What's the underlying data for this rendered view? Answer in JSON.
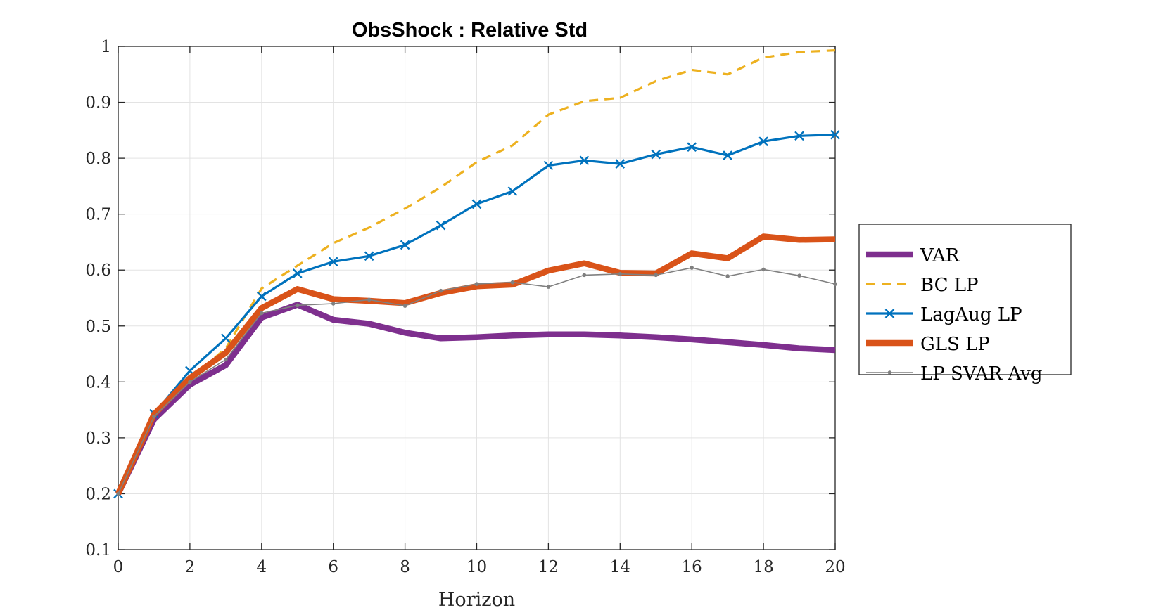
{
  "chart_data": {
    "type": "line",
    "title": "ObsShock : Relative Std",
    "xlabel": "Horizon",
    "ylabel": "",
    "xlim": [
      0,
      20
    ],
    "ylim": [
      0.1,
      1
    ],
    "xticks": [
      "0",
      "2",
      "4",
      "6",
      "8",
      "10",
      "12",
      "14",
      "16",
      "18",
      "20"
    ],
    "yticks": [
      "0.1",
      "0.2",
      "0.3",
      "0.4",
      "0.5",
      "0.6",
      "0.7",
      "0.8",
      "0.9",
      "1"
    ],
    "grid": true,
    "legend_position": "outside-right",
    "x": [
      0,
      1,
      2,
      3,
      4,
      5,
      6,
      7,
      8,
      9,
      10,
      11,
      12,
      13,
      14,
      15,
      16,
      17,
      18,
      19,
      20
    ],
    "series": [
      {
        "name": "VAR",
        "color": "#7E2F8E",
        "style": "solid-thick",
        "values": [
          0.2,
          0.333,
          0.395,
          0.43,
          0.515,
          0.538,
          0.511,
          0.504,
          0.488,
          0.478,
          0.48,
          0.483,
          0.485,
          0.485,
          0.483,
          0.48,
          0.476,
          0.471,
          0.466,
          0.46,
          0.457
        ]
      },
      {
        "name": "BC LP",
        "color": "#EDB120",
        "style": "dashed",
        "values": [
          0.2,
          0.343,
          0.405,
          0.46,
          0.567,
          0.608,
          0.648,
          0.676,
          0.71,
          0.748,
          0.793,
          0.823,
          0.878,
          0.902,
          0.908,
          0.938,
          0.958,
          0.95,
          0.98,
          0.99,
          0.993
        ]
      },
      {
        "name": "LagAug LP",
        "color": "#0072BD",
        "style": "solid-x",
        "values": [
          0.2,
          0.343,
          0.42,
          0.478,
          0.553,
          0.594,
          0.615,
          0.625,
          0.645,
          0.68,
          0.718,
          0.741,
          0.787,
          0.796,
          0.79,
          0.807,
          0.82,
          0.805,
          0.83,
          0.84,
          0.842
        ]
      },
      {
        "name": "GLS LP",
        "color": "#D95319",
        "style": "solid-thick",
        "values": [
          0.2,
          0.342,
          0.407,
          0.452,
          0.532,
          0.566,
          0.548,
          0.545,
          0.541,
          0.559,
          0.571,
          0.574,
          0.599,
          0.612,
          0.595,
          0.594,
          0.63,
          0.621,
          0.66,
          0.654,
          0.655
        ]
      },
      {
        "name": "LP SVAR Avg",
        "color": "#808080",
        "style": "solid-dot",
        "values": [
          0.2,
          0.338,
          0.4,
          0.44,
          0.523,
          0.537,
          0.54,
          0.547,
          0.536,
          0.563,
          0.575,
          0.578,
          0.57,
          0.591,
          0.593,
          0.591,
          0.604,
          0.589,
          0.601,
          0.59,
          0.575
        ]
      }
    ]
  }
}
